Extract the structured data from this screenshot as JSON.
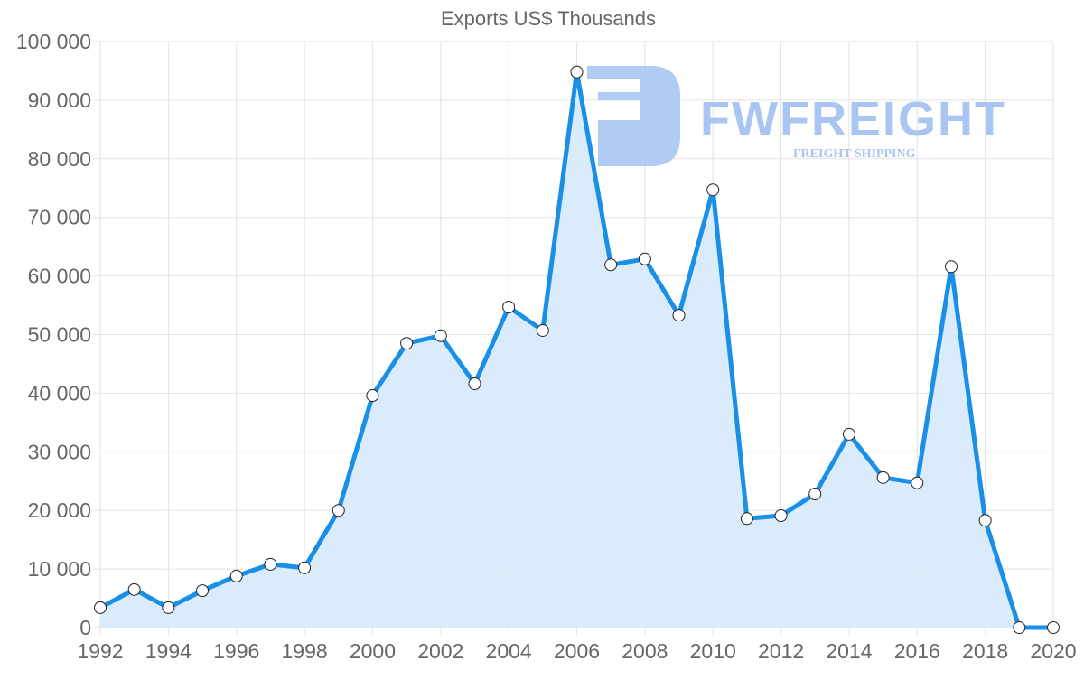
{
  "chart_data": {
    "type": "area",
    "title": "Exports US$ Thousands",
    "xlabel": "",
    "ylabel": "",
    "ylim": [
      0,
      100000
    ],
    "yticks": [
      0,
      10000,
      20000,
      30000,
      40000,
      50000,
      60000,
      70000,
      80000,
      90000,
      100000
    ],
    "ytick_labels": [
      "0",
      "10 000",
      "20 000",
      "30 000",
      "40 000",
      "50 000",
      "60 000",
      "70 000",
      "80 000",
      "90 000",
      "100 000"
    ],
    "xtick_labels": [
      "1992",
      "1994",
      "1996",
      "1998",
      "2000",
      "2002",
      "2004",
      "2006",
      "2008",
      "2010",
      "2012",
      "2014",
      "2016",
      "2018",
      "2020"
    ],
    "grid": true,
    "legend": null,
    "x": [
      1992,
      1993,
      1994,
      1995,
      1996,
      1997,
      1998,
      1999,
      2000,
      2001,
      2002,
      2003,
      2004,
      2005,
      2006,
      2007,
      2008,
      2009,
      2010,
      2011,
      2012,
      2013,
      2014,
      2015,
      2016,
      2017,
      2018,
      2019,
      2020
    ],
    "series": [
      {
        "name": "Exports",
        "color": "#1a8fe8",
        "fill": "#d8ebfb",
        "values": [
          3400,
          6500,
          3400,
          6300,
          8800,
          10800,
          10200,
          20000,
          39600,
          48500,
          49800,
          41600,
          54700,
          50700,
          94800,
          61900,
          62900,
          53300,
          74700,
          18600,
          19100,
          22800,
          33000,
          25600,
          24700,
          61600,
          18300,
          0,
          0
        ]
      }
    ]
  },
  "watermark": {
    "brand": "FWFREIGHT",
    "tagline": "FREIGHT SHIPPING",
    "color": "#a9c6f2"
  }
}
